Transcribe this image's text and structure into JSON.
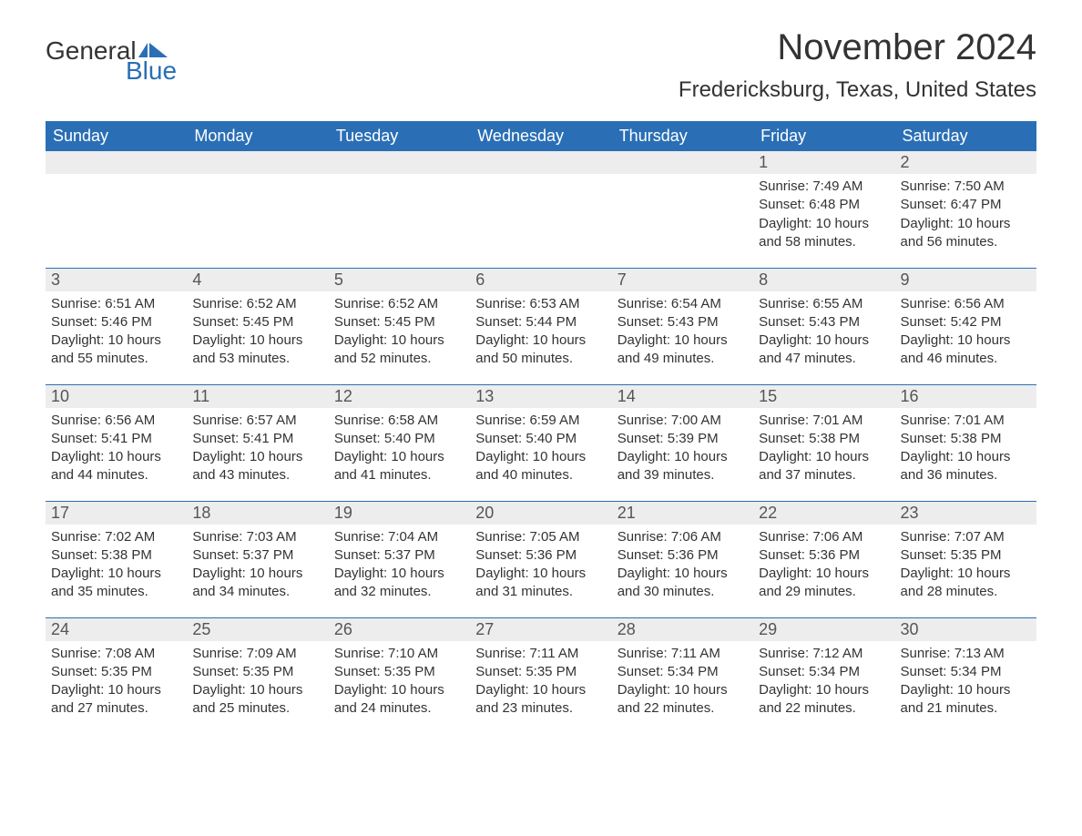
{
  "logo": {
    "word1": "General",
    "word2": "Blue",
    "brand_color": "#2a6fb5"
  },
  "title": "November 2024",
  "location": "Fredericksburg, Texas, United States",
  "colors": {
    "header_bg": "#2a6fb5",
    "header_text": "#ffffff",
    "daynum_bg": "#ededed",
    "text": "#333333",
    "rule": "#2a6fb5",
    "page_bg": "#ffffff"
  },
  "fonts": {
    "title_pt": 40,
    "location_pt": 24,
    "th_pt": 18,
    "daynum_pt": 18,
    "body_pt": 15
  },
  "weekdays": [
    "Sunday",
    "Monday",
    "Tuesday",
    "Wednesday",
    "Thursday",
    "Friday",
    "Saturday"
  ],
  "weeks": [
    [
      null,
      null,
      null,
      null,
      null,
      {
        "n": "1",
        "sunrise": "7:49 AM",
        "sunset": "6:48 PM",
        "daylight": "10 hours and 58 minutes."
      },
      {
        "n": "2",
        "sunrise": "7:50 AM",
        "sunset": "6:47 PM",
        "daylight": "10 hours and 56 minutes."
      }
    ],
    [
      {
        "n": "3",
        "sunrise": "6:51 AM",
        "sunset": "5:46 PM",
        "daylight": "10 hours and 55 minutes."
      },
      {
        "n": "4",
        "sunrise": "6:52 AM",
        "sunset": "5:45 PM",
        "daylight": "10 hours and 53 minutes."
      },
      {
        "n": "5",
        "sunrise": "6:52 AM",
        "sunset": "5:45 PM",
        "daylight": "10 hours and 52 minutes."
      },
      {
        "n": "6",
        "sunrise": "6:53 AM",
        "sunset": "5:44 PM",
        "daylight": "10 hours and 50 minutes."
      },
      {
        "n": "7",
        "sunrise": "6:54 AM",
        "sunset": "5:43 PM",
        "daylight": "10 hours and 49 minutes."
      },
      {
        "n": "8",
        "sunrise": "6:55 AM",
        "sunset": "5:43 PM",
        "daylight": "10 hours and 47 minutes."
      },
      {
        "n": "9",
        "sunrise": "6:56 AM",
        "sunset": "5:42 PM",
        "daylight": "10 hours and 46 minutes."
      }
    ],
    [
      {
        "n": "10",
        "sunrise": "6:56 AM",
        "sunset": "5:41 PM",
        "daylight": "10 hours and 44 minutes."
      },
      {
        "n": "11",
        "sunrise": "6:57 AM",
        "sunset": "5:41 PM",
        "daylight": "10 hours and 43 minutes."
      },
      {
        "n": "12",
        "sunrise": "6:58 AM",
        "sunset": "5:40 PM",
        "daylight": "10 hours and 41 minutes."
      },
      {
        "n": "13",
        "sunrise": "6:59 AM",
        "sunset": "5:40 PM",
        "daylight": "10 hours and 40 minutes."
      },
      {
        "n": "14",
        "sunrise": "7:00 AM",
        "sunset": "5:39 PM",
        "daylight": "10 hours and 39 minutes."
      },
      {
        "n": "15",
        "sunrise": "7:01 AM",
        "sunset": "5:38 PM",
        "daylight": "10 hours and 37 minutes."
      },
      {
        "n": "16",
        "sunrise": "7:01 AM",
        "sunset": "5:38 PM",
        "daylight": "10 hours and 36 minutes."
      }
    ],
    [
      {
        "n": "17",
        "sunrise": "7:02 AM",
        "sunset": "5:38 PM",
        "daylight": "10 hours and 35 minutes."
      },
      {
        "n": "18",
        "sunrise": "7:03 AM",
        "sunset": "5:37 PM",
        "daylight": "10 hours and 34 minutes."
      },
      {
        "n": "19",
        "sunrise": "7:04 AM",
        "sunset": "5:37 PM",
        "daylight": "10 hours and 32 minutes."
      },
      {
        "n": "20",
        "sunrise": "7:05 AM",
        "sunset": "5:36 PM",
        "daylight": "10 hours and 31 minutes."
      },
      {
        "n": "21",
        "sunrise": "7:06 AM",
        "sunset": "5:36 PM",
        "daylight": "10 hours and 30 minutes."
      },
      {
        "n": "22",
        "sunrise": "7:06 AM",
        "sunset": "5:36 PM",
        "daylight": "10 hours and 29 minutes."
      },
      {
        "n": "23",
        "sunrise": "7:07 AM",
        "sunset": "5:35 PM",
        "daylight": "10 hours and 28 minutes."
      }
    ],
    [
      {
        "n": "24",
        "sunrise": "7:08 AM",
        "sunset": "5:35 PM",
        "daylight": "10 hours and 27 minutes."
      },
      {
        "n": "25",
        "sunrise": "7:09 AM",
        "sunset": "5:35 PM",
        "daylight": "10 hours and 25 minutes."
      },
      {
        "n": "26",
        "sunrise": "7:10 AM",
        "sunset": "5:35 PM",
        "daylight": "10 hours and 24 minutes."
      },
      {
        "n": "27",
        "sunrise": "7:11 AM",
        "sunset": "5:35 PM",
        "daylight": "10 hours and 23 minutes."
      },
      {
        "n": "28",
        "sunrise": "7:11 AM",
        "sunset": "5:34 PM",
        "daylight": "10 hours and 22 minutes."
      },
      {
        "n": "29",
        "sunrise": "7:12 AM",
        "sunset": "5:34 PM",
        "daylight": "10 hours and 22 minutes."
      },
      {
        "n": "30",
        "sunrise": "7:13 AM",
        "sunset": "5:34 PM",
        "daylight": "10 hours and 21 minutes."
      }
    ]
  ],
  "labels": {
    "sunrise": "Sunrise: ",
    "sunset": "Sunset: ",
    "daylight": "Daylight: "
  }
}
